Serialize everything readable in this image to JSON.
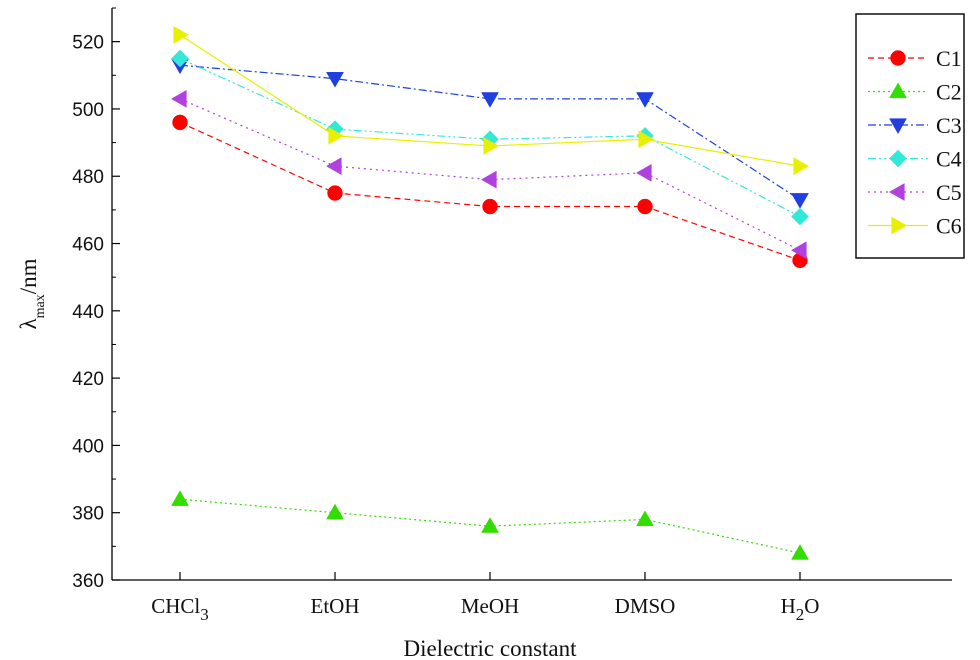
{
  "chart_data": {
    "type": "line",
    "categories": [
      {
        "main": "CHCl",
        "sub": "3",
        "tail": ""
      },
      {
        "main": "EtOH",
        "sub": "",
        "tail": ""
      },
      {
        "main": "MeOH",
        "sub": "",
        "tail": ""
      },
      {
        "main": "DMSO",
        "sub": "",
        "tail": ""
      },
      {
        "main": "H",
        "sub": "2",
        "tail": "O"
      }
    ],
    "xlabel": "Dielectric constant",
    "ylabel": {
      "main": "λ",
      "sub": "max",
      "tail": "/nm"
    },
    "ylim": [
      360,
      530
    ],
    "yticks": [
      360,
      380,
      400,
      420,
      440,
      460,
      480,
      500,
      520
    ],
    "grid": false,
    "legend_position": "top-right",
    "series": [
      {
        "name": "C1",
        "color": "#ff0000",
        "marker": "circle",
        "dash": "dashed",
        "values": [
          496,
          475,
          471,
          471,
          455
        ]
      },
      {
        "name": "C2",
        "color": "#33dd00",
        "marker": "triangle-up",
        "dash": "dotted",
        "values": [
          384,
          380,
          376,
          378,
          368
        ]
      },
      {
        "name": "C3",
        "color": "#1f3fe0",
        "marker": "triangle-down",
        "dash": "dashdot",
        "values": [
          513,
          509,
          503,
          503,
          473
        ]
      },
      {
        "name": "C4",
        "color": "#33e8d8",
        "marker": "diamond",
        "dash": "dashdotdot",
        "values": [
          515,
          494,
          491,
          492,
          468
        ]
      },
      {
        "name": "C5",
        "color": "#b040e0",
        "marker": "triangle-left",
        "dash": "shortdot",
        "values": [
          503,
          483,
          479,
          481,
          458
        ]
      },
      {
        "name": "C6",
        "color": "#e8f000",
        "marker": "triangle-right",
        "dash": "solid",
        "values": [
          522,
          492,
          489,
          491,
          483
        ]
      }
    ]
  }
}
